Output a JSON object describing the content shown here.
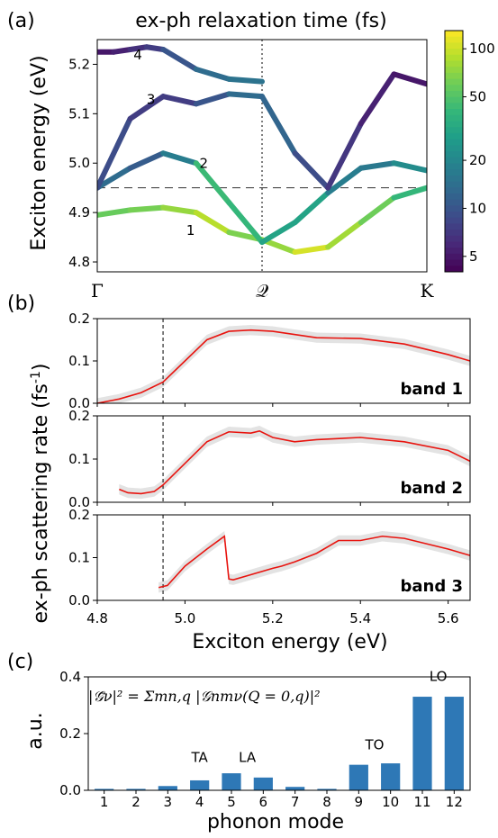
{
  "panels": {
    "a": {
      "label": "(a)",
      "title": "ex-ph relaxation time (fs)",
      "ylabel": "Exciton energy (eV)"
    },
    "b": {
      "label": "(b)",
      "ylabel": "ex-ph scattering rate (fs",
      "ylabel_sup": "-1",
      "ylabel_end": ")",
      "xlabel": "Exciton energy (eV)"
    },
    "c": {
      "label": "(c)",
      "ylabel": "a.u.",
      "xlabel": "phonon mode",
      "formula": "|𝒢̄ν|² = Σmn,q |𝒢nmν(Q = 0,q)|²"
    }
  },
  "chart_data": [
    {
      "type": "line",
      "title": "ex-ph relaxation time (fs)",
      "ylabel": "Exciton energy (eV)",
      "xticks": [
        "Γ",
        "𝒬",
        "K"
      ],
      "ylim": [
        4.78,
        5.25
      ],
      "yticks": [
        4.8,
        4.9,
        5.0,
        5.1,
        5.2
      ],
      "ref_line": 4.95,
      "colorbar": {
        "label": "ex-ph relaxation time (fs)",
        "scale": "log",
        "range": [
          4,
          130
        ],
        "ticks": [
          5,
          10,
          20,
          50,
          100
        ],
        "colormap": "viridis"
      },
      "band_labels": [
        "1",
        "2",
        "3",
        "4"
      ],
      "bands": [
        {
          "name": "1",
          "x": [
            0,
            0.1,
            0.2,
            0.3,
            0.4,
            0.5,
            0.6,
            0.7,
            0.8,
            0.9,
            1.0
          ],
          "y": [
            4.895,
            4.905,
            4.91,
            4.9,
            4.86,
            4.845,
            4.82,
            4.83,
            4.88,
            4.93,
            4.95
          ],
          "relax_fs": [
            60,
            55,
            70,
            80,
            100,
            30,
            120,
            90,
            70,
            50,
            30
          ]
        },
        {
          "name": "2",
          "x": [
            0,
            0.1,
            0.2,
            0.3,
            0.4,
            0.5,
            0.6,
            0.7,
            0.8,
            0.9,
            1.0
          ],
          "y": [
            4.95,
            4.99,
            5.02,
            5.0,
            4.92,
            4.84,
            4.88,
            4.94,
            4.99,
            5.0,
            4.985
          ],
          "relax_fs": [
            15,
            12,
            10,
            25,
            60,
            20,
            40,
            20,
            15,
            18,
            25
          ]
        },
        {
          "name": "3",
          "x": [
            0,
            0.1,
            0.2,
            0.3,
            0.4,
            0.5,
            0.6,
            0.7,
            0.8,
            0.9,
            1.0
          ],
          "y": [
            4.95,
            5.09,
            5.135,
            5.12,
            5.14,
            5.135,
            5.02,
            4.95,
            5.08,
            5.18,
            5.16
          ],
          "relax_fs": [
            10,
            8,
            7,
            8,
            12,
            15,
            10,
            8,
            6,
            5,
            5
          ]
        },
        {
          "name": "4",
          "x": [
            0,
            0.05,
            0.1,
            0.15,
            0.2,
            0.3,
            0.4,
            0.5
          ],
          "y": [
            5.225,
            5.225,
            5.23,
            5.235,
            5.23,
            5.19,
            5.17,
            5.165
          ],
          "relax_fs": [
            5,
            5,
            6,
            7,
            8,
            12,
            15,
            15
          ]
        }
      ]
    },
    {
      "type": "line",
      "xlim": [
        4.8,
        5.65
      ],
      "xticks": [
        4.8,
        5.0,
        5.2,
        5.4,
        5.6
      ],
      "ylim": [
        0,
        0.2
      ],
      "yticks": [
        0.0,
        0.1,
        0.2
      ],
      "ref_line": 4.95,
      "series": [
        {
          "name": "band 1",
          "x": [
            4.8,
            4.85,
            4.9,
            4.95,
            5.0,
            5.05,
            5.1,
            5.15,
            5.2,
            5.3,
            5.4,
            5.5,
            5.6,
            5.65
          ],
          "y": [
            0.0,
            0.01,
            0.025,
            0.05,
            0.1,
            0.15,
            0.17,
            0.173,
            0.17,
            0.155,
            0.153,
            0.14,
            0.115,
            0.1
          ]
        },
        {
          "name": "band 2",
          "x": [
            4.85,
            4.87,
            4.9,
            4.93,
            4.95,
            5.0,
            5.05,
            5.1,
            5.15,
            5.17,
            5.2,
            5.25,
            5.3,
            5.4,
            5.5,
            5.6,
            5.65
          ],
          "y": [
            0.03,
            0.022,
            0.02,
            0.025,
            0.04,
            0.09,
            0.14,
            0.163,
            0.16,
            0.165,
            0.15,
            0.14,
            0.145,
            0.15,
            0.14,
            0.12,
            0.095
          ]
        },
        {
          "name": "band 3",
          "x": [
            4.94,
            4.96,
            5.0,
            5.05,
            5.09,
            5.1,
            5.11,
            5.15,
            5.2,
            5.22,
            5.25,
            5.3,
            5.35,
            5.4,
            5.45,
            5.5,
            5.6,
            5.65
          ],
          "y": [
            0.03,
            0.035,
            0.08,
            0.12,
            0.15,
            0.05,
            0.048,
            0.06,
            0.075,
            0.08,
            0.09,
            0.11,
            0.14,
            0.14,
            0.15,
            0.145,
            0.12,
            0.105
          ]
        }
      ]
    },
    {
      "type": "bar",
      "ylabel": "a.u.",
      "xlabel": "phonon mode",
      "ylim": [
        0,
        0.4
      ],
      "yticks": [
        0.0,
        0.2,
        0.4
      ],
      "categories": [
        "1",
        "2",
        "3",
        "4",
        "5",
        "6",
        "7",
        "8",
        "9",
        "10",
        "11",
        "12"
      ],
      "values": [
        0.005,
        0.005,
        0.015,
        0.035,
        0.06,
        0.045,
        0.012,
        0.005,
        0.09,
        0.095,
        0.33,
        0.33
      ],
      "annotations": [
        {
          "text": "TA",
          "mode": 4
        },
        {
          "text": "LA",
          "mode": 5.5
        },
        {
          "text": "TO",
          "mode": 9.5
        },
        {
          "text": "LO",
          "mode": 11.5
        }
      ],
      "color": "#2e78b6"
    }
  ]
}
